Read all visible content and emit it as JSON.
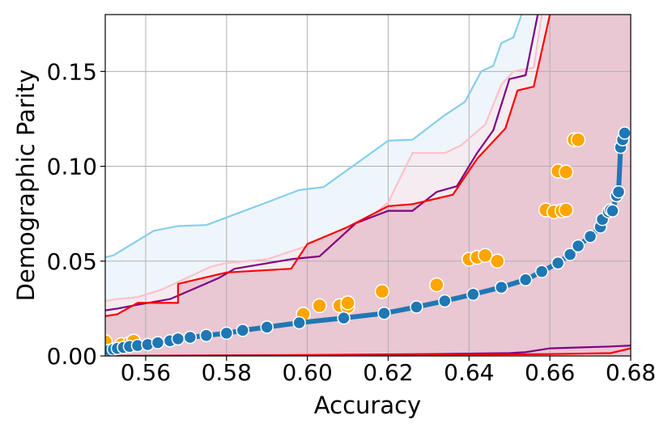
{
  "chart_data": {
    "type": "scatter",
    "xlabel": "Accuracy",
    "ylabel": "Demographic Parity",
    "xlim": [
      0.55,
      0.68
    ],
    "ylim": [
      0.0,
      0.18
    ],
    "xticks": [
      "0.56",
      "0.58",
      "0.60",
      "0.62",
      "0.64",
      "0.66",
      "0.68"
    ],
    "yticks": [
      "0.00",
      "0.05",
      "0.10",
      "0.15"
    ],
    "grid": true,
    "band_colors": {
      "outer": "#eef6fb",
      "inner": "#e9c7d3"
    },
    "lines": [
      {
        "color": "#87ceeb",
        "points": [
          [
            0.55,
            0.052
          ],
          [
            0.552,
            0.053
          ],
          [
            0.562,
            0.066
          ],
          [
            0.568,
            0.0685
          ],
          [
            0.575,
            0.069
          ],
          [
            0.59,
            0.081
          ],
          [
            0.598,
            0.0875
          ],
          [
            0.604,
            0.089
          ],
          [
            0.62,
            0.1135
          ],
          [
            0.626,
            0.114
          ],
          [
            0.634,
            0.127
          ],
          [
            0.639,
            0.134
          ],
          [
            0.643,
            0.15
          ],
          [
            0.646,
            0.153
          ],
          [
            0.648,
            0.165
          ],
          [
            0.651,
            0.168
          ],
          [
            0.653,
            0.18
          ]
        ]
      },
      {
        "color": "#ffc0cb",
        "points": [
          [
            0.55,
            0.029
          ],
          [
            0.553,
            0.03
          ],
          [
            0.558,
            0.031
          ],
          [
            0.564,
            0.035
          ],
          [
            0.572,
            0.043
          ],
          [
            0.576,
            0.047
          ],
          [
            0.58,
            0.049
          ],
          [
            0.59,
            0.051
          ],
          [
            0.6,
            0.058
          ],
          [
            0.604,
            0.058
          ],
          [
            0.612,
            0.067
          ],
          [
            0.62,
            0.081
          ],
          [
            0.626,
            0.107
          ],
          [
            0.634,
            0.107
          ],
          [
            0.638,
            0.111
          ],
          [
            0.644,
            0.122
          ],
          [
            0.648,
            0.143
          ],
          [
            0.651,
            0.15
          ],
          [
            0.656,
            0.152
          ],
          [
            0.658,
            0.18
          ]
        ]
      },
      {
        "color": "#800080",
        "points": [
          [
            0.55,
            0.024
          ],
          [
            0.553,
            0.025
          ],
          [
            0.558,
            0.027
          ],
          [
            0.566,
            0.03
          ],
          [
            0.578,
            0.041
          ],
          [
            0.582,
            0.046
          ],
          [
            0.596,
            0.051
          ],
          [
            0.603,
            0.0525
          ],
          [
            0.612,
            0.07
          ],
          [
            0.62,
            0.0765
          ],
          [
            0.626,
            0.0765
          ],
          [
            0.632,
            0.0865
          ],
          [
            0.637,
            0.0895
          ],
          [
            0.642,
            0.107
          ],
          [
            0.646,
            0.119
          ],
          [
            0.65,
            0.146
          ],
          [
            0.654,
            0.148
          ],
          [
            0.657,
            0.18
          ]
        ]
      },
      {
        "color": "#ff0000",
        "points": [
          [
            0.55,
            0.021
          ],
          [
            0.553,
            0.022
          ],
          [
            0.558,
            0.028
          ],
          [
            0.568,
            0.028
          ],
          [
            0.568,
            0.038
          ],
          [
            0.58,
            0.044
          ],
          [
            0.596,
            0.046
          ],
          [
            0.6,
            0.059
          ],
          [
            0.61,
            0.068
          ],
          [
            0.62,
            0.079
          ],
          [
            0.626,
            0.08
          ],
          [
            0.636,
            0.085
          ],
          [
            0.642,
            0.104
          ],
          [
            0.649,
            0.12
          ],
          [
            0.652,
            0.14
          ],
          [
            0.656,
            0.142
          ],
          [
            0.66,
            0.18
          ]
        ]
      },
      {
        "color": "#800080",
        "points": [
          [
            0.55,
            0.0
          ],
          [
            0.6,
            0.0005
          ],
          [
            0.63,
            0.001
          ],
          [
            0.65,
            0.0015
          ],
          [
            0.654,
            0.002
          ],
          [
            0.66,
            0.004
          ],
          [
            0.668,
            0.0045
          ],
          [
            0.675,
            0.005
          ],
          [
            0.68,
            0.0055
          ]
        ]
      },
      {
        "color": "#ff0000",
        "points": [
          [
            0.55,
            0.0
          ],
          [
            0.62,
            0.0005
          ],
          [
            0.66,
            0.001
          ],
          [
            0.675,
            0.0015
          ],
          [
            0.68,
            0.004
          ]
        ]
      }
    ],
    "scatter_orange": {
      "color": "#ffa500",
      "points": [
        [
          0.55,
          0.0075
        ],
        [
          0.554,
          0.006
        ],
        [
          0.556,
          0.0065
        ],
        [
          0.557,
          0.0078
        ],
        [
          0.599,
          0.022
        ],
        [
          0.603,
          0.0265
        ],
        [
          0.608,
          0.0265
        ],
        [
          0.61,
          0.026
        ],
        [
          0.61,
          0.028
        ],
        [
          0.6185,
          0.034
        ],
        [
          0.632,
          0.0375
        ],
        [
          0.64,
          0.051
        ],
        [
          0.642,
          0.052
        ],
        [
          0.644,
          0.053
        ],
        [
          0.647,
          0.05
        ],
        [
          0.659,
          0.077
        ],
        [
          0.661,
          0.076
        ],
        [
          0.663,
          0.0765
        ],
        [
          0.664,
          0.077
        ],
        [
          0.662,
          0.0975
        ],
        [
          0.664,
          0.097
        ],
        [
          0.666,
          0.114
        ],
        [
          0.667,
          0.114
        ]
      ]
    },
    "frontier": {
      "color": "#1f77b4",
      "points": [
        [
          0.551,
          0.003
        ],
        [
          0.552,
          0.0035
        ],
        [
          0.553,
          0.004
        ],
        [
          0.5545,
          0.0045
        ],
        [
          0.556,
          0.005
        ],
        [
          0.558,
          0.0055
        ],
        [
          0.5605,
          0.006
        ],
        [
          0.563,
          0.007
        ],
        [
          0.566,
          0.008
        ],
        [
          0.568,
          0.009
        ],
        [
          0.571,
          0.0098
        ],
        [
          0.575,
          0.0108
        ],
        [
          0.58,
          0.012
        ],
        [
          0.584,
          0.0135
        ],
        [
          0.59,
          0.0152
        ],
        [
          0.598,
          0.0175
        ],
        [
          0.609,
          0.02
        ],
        [
          0.619,
          0.0225
        ],
        [
          0.627,
          0.0258
        ],
        [
          0.634,
          0.029
        ],
        [
          0.641,
          0.0325
        ],
        [
          0.648,
          0.0362
        ],
        [
          0.654,
          0.0402
        ],
        [
          0.658,
          0.0445
        ],
        [
          0.662,
          0.049
        ],
        [
          0.665,
          0.0535
        ],
        [
          0.667,
          0.058
        ],
        [
          0.67,
          0.063
        ],
        [
          0.6725,
          0.068
        ],
        [
          0.673,
          0.072
        ],
        [
          0.6745,
          0.076
        ],
        [
          0.675,
          0.077
        ],
        [
          0.6755,
          0.0765
        ],
        [
          0.6765,
          0.0845
        ],
        [
          0.677,
          0.0865
        ],
        [
          0.6775,
          0.11
        ],
        [
          0.678,
          0.114
        ],
        [
          0.6785,
          0.1175
        ]
      ]
    }
  }
}
